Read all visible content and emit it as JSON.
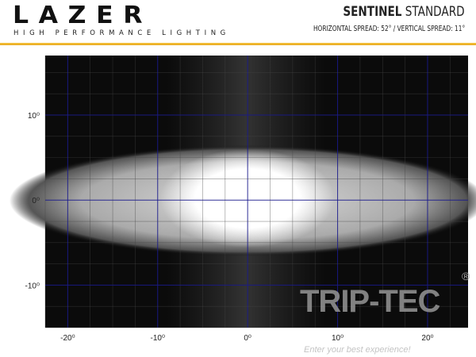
{
  "header": {
    "brand": "LAZER",
    "tagline": "HIGH PERFORMANCE LIGHTING",
    "product_bold": "SENTINEL",
    "product_rest": " STANDARD",
    "spec": "HORIZONTAL SPREAD: 52° / VERTICAL SPREAD: 11°",
    "accent_color": "#efb52e"
  },
  "chart_data": {
    "type": "heatmap",
    "title": "",
    "xlabel": "",
    "ylabel": "",
    "xlim": [
      -22.5,
      24.5
    ],
    "ylim": [
      -15,
      17
    ],
    "x_ticks": [
      -20,
      -10,
      0,
      10,
      20
    ],
    "x_tick_labels": [
      "-20⁰",
      "-10⁰",
      "0⁰",
      "10⁰",
      "20⁰"
    ],
    "y_ticks": [
      10,
      0,
      -10
    ],
    "y_tick_labels": [
      "10⁰",
      "0⁰",
      "-10⁰"
    ],
    "grid": true,
    "minor_grid_step": 2.5,
    "major_grid_color": "#1a1a8c",
    "horizontal_spread_deg": 52,
    "vertical_spread_deg": 11
  },
  "watermark": {
    "name": "TRIP-TEC",
    "slogan": "Enter your best experience!",
    "reg": "®"
  }
}
